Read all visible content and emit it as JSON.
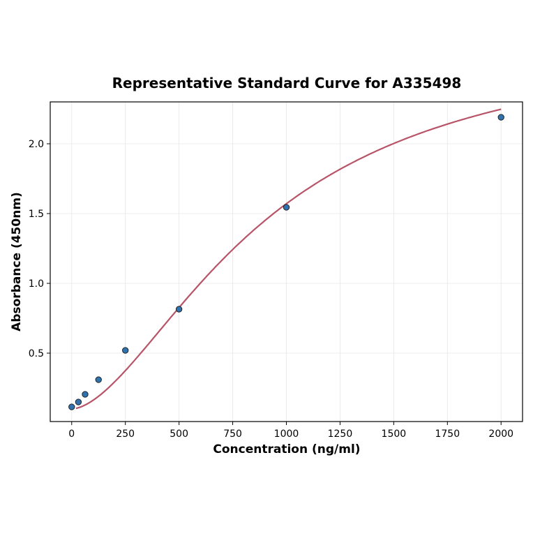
{
  "chart_data": {
    "type": "scatter",
    "title": "Representative Standard Curve for A335498",
    "xlabel": "Concentration (ng/ml)",
    "ylabel": "Absorbance (450nm)",
    "xlim": [
      -100,
      2100
    ],
    "ylim": [
      0.01,
      2.3
    ],
    "xticks": [
      0,
      250,
      500,
      750,
      1000,
      1250,
      1500,
      1750,
      2000
    ],
    "yticks": [
      0.5,
      1.0,
      1.5,
      2.0
    ],
    "ytick_labels": [
      "0.5",
      "1.0",
      "1.5",
      "2.0"
    ],
    "grid": true,
    "points": {
      "x": [
        0,
        31.25,
        62.5,
        125,
        250,
        500,
        1000,
        2000
      ],
      "y": [
        0.115,
        0.15,
        0.205,
        0.31,
        0.52,
        0.815,
        1.545,
        2.19
      ]
    },
    "fit_curve": {
      "type": "4PL fit line"
    },
    "colors": {
      "points": "#2f72ad",
      "curve": "#b85468"
    }
  }
}
